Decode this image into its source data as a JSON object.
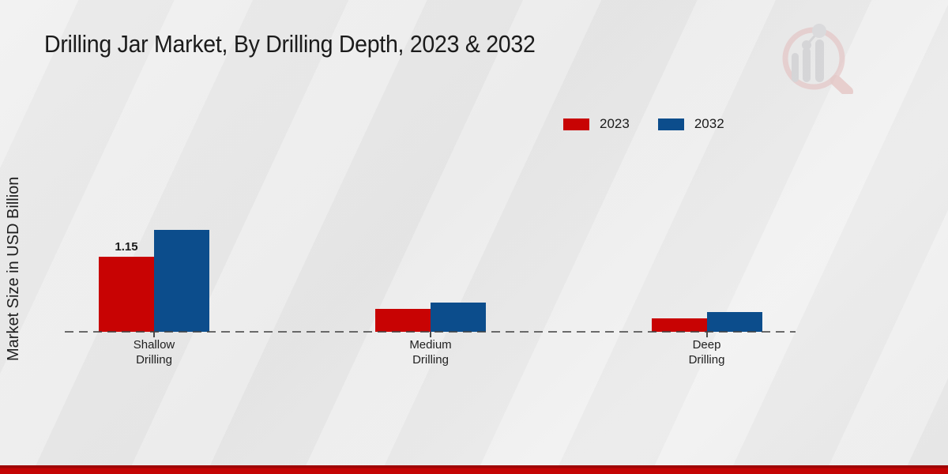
{
  "page": {
    "title": "Drilling Jar Market, By Drilling Depth, 2023 & 2032",
    "ylabel": "Market Size in USD Billion"
  },
  "watermark": {
    "icon": "magnifier-bar-chart-logo"
  },
  "colors": {
    "series_2023": "#c80303",
    "series_2032": "#0c4d8c",
    "footer_bar_top": "#9e0505",
    "footer_bar": "#c40404",
    "baseline": "#3e3e3e",
    "background": "#ebebeb"
  },
  "chart_data": {
    "type": "bar",
    "title": "Drilling Jar Market, By Drilling Depth, 2023 & 2032",
    "xlabel": "",
    "ylabel": "Market Size in USD Billion",
    "categories": [
      "Shallow Drilling",
      "Medium Drilling",
      "Deep Drilling"
    ],
    "series": [
      {
        "name": "2023",
        "color": "#c80303",
        "values": [
          1.15,
          0.35,
          0.2
        ]
      },
      {
        "name": "2032",
        "color": "#0c4d8c",
        "values": [
          1.55,
          0.45,
          0.3
        ]
      }
    ],
    "value_labels": [
      {
        "series_index": 0,
        "category_index": 0,
        "text": "1.15"
      }
    ],
    "ylim": [
      0,
      1.8
    ],
    "grid": false,
    "y_axis_ticks_visible": false,
    "legend_position": "top-right",
    "baseline_style": "dashed"
  }
}
